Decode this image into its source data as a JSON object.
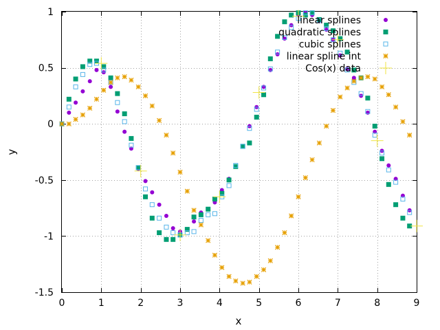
{
  "chart_data": {
    "type": "scatter",
    "title": "",
    "xlabel": "x",
    "ylabel": "y",
    "xlim": [
      0,
      9
    ],
    "ylim": [
      -1.5,
      1
    ],
    "xticks": [
      0,
      1,
      2,
      3,
      4,
      5,
      6,
      7,
      8,
      9
    ],
    "xtick_labels": [
      "0",
      "1",
      "2",
      "3",
      "4",
      "5",
      "6",
      "7",
      "8",
      "9"
    ],
    "yticks": [
      -1.5,
      -1,
      -0.5,
      0,
      0.5,
      1
    ],
    "ytick_labels": [
      "-1.5",
      "-1",
      "-0.5",
      "0",
      "0.5",
      "1"
    ],
    "grid": true,
    "legend_position": "top-right",
    "series": [
      {
        "name": "linear splines",
        "marker": "filled-circle",
        "color": "#9400d3",
        "x": [
          0.0,
          0.18,
          0.35,
          0.53,
          0.71,
          0.88,
          1.06,
          1.24,
          1.41,
          1.59,
          1.76,
          1.94,
          2.12,
          2.29,
          2.47,
          2.65,
          2.82,
          3.0,
          3.18,
          3.35,
          3.53,
          3.71,
          3.88,
          4.06,
          4.24,
          4.41,
          4.59,
          4.76,
          4.94,
          5.12,
          5.29,
          5.47,
          5.65,
          5.82,
          6.0,
          6.18,
          6.35,
          6.53,
          6.71,
          6.88,
          7.06,
          7.24,
          7.41,
          7.59,
          7.76,
          7.94,
          8.12,
          8.29,
          8.47,
          8.65,
          8.82
        ],
        "y": [
          0.0,
          0.1,
          0.19,
          0.29,
          0.38,
          0.48,
          0.46,
          0.33,
          0.11,
          -0.07,
          -0.22,
          -0.4,
          -0.51,
          -0.61,
          -0.72,
          -0.82,
          -0.93,
          -0.96,
          -0.94,
          -0.87,
          -0.79,
          -0.76,
          -0.7,
          -0.59,
          -0.49,
          -0.38,
          -0.2,
          -0.02,
          0.15,
          0.33,
          0.48,
          0.62,
          0.76,
          0.88,
          0.97,
          0.99,
          0.97,
          0.92,
          0.84,
          0.75,
          0.61,
          0.49,
          0.41,
          0.25,
          0.1,
          -0.07,
          -0.24,
          -0.37,
          -0.49,
          -0.64,
          -0.77
        ]
      },
      {
        "name": "quadratic splines",
        "marker": "filled-square",
        "color": "#009e73",
        "x": [
          0.0,
          0.18,
          0.35,
          0.53,
          0.71,
          0.88,
          1.06,
          1.24,
          1.41,
          1.59,
          1.76,
          1.94,
          2.12,
          2.29,
          2.47,
          2.65,
          2.82,
          3.0,
          3.18,
          3.35,
          3.53,
          3.71,
          3.88,
          4.06,
          4.24,
          4.41,
          4.59,
          4.76,
          4.94,
          5.12,
          5.29,
          5.47,
          5.65,
          5.82,
          6.0,
          6.18,
          6.35,
          6.53,
          6.71,
          6.88,
          7.06,
          7.24,
          7.41,
          7.59,
          7.76,
          7.94,
          8.12,
          8.29,
          8.47,
          8.65,
          8.82
        ],
        "y": [
          0.0,
          0.22,
          0.4,
          0.51,
          0.56,
          0.56,
          0.51,
          0.41,
          0.27,
          0.09,
          -0.13,
          -0.39,
          -0.65,
          -0.84,
          -0.97,
          -1.03,
          -1.03,
          -0.99,
          -0.94,
          -0.83,
          -0.81,
          -0.76,
          -0.67,
          -0.62,
          -0.5,
          -0.38,
          -0.2,
          -0.17,
          0.06,
          0.26,
          0.58,
          0.78,
          0.91,
          0.97,
          0.99,
          0.97,
          0.99,
          0.93,
          0.88,
          0.83,
          0.76,
          0.64,
          0.48,
          0.41,
          0.23,
          -0.02,
          -0.31,
          -0.54,
          -0.72,
          -0.84,
          -0.91
        ]
      },
      {
        "name": "cubic splines",
        "marker": "open-square",
        "color": "#56b4e9",
        "x": [
          0.0,
          0.18,
          0.35,
          0.53,
          0.71,
          0.88,
          1.06,
          1.24,
          1.41,
          1.59,
          1.76,
          1.94,
          2.12,
          2.29,
          2.47,
          2.65,
          2.82,
          3.0,
          3.18,
          3.35,
          3.53,
          3.71,
          3.88,
          4.06,
          4.24,
          4.41,
          4.59,
          4.76,
          4.94,
          5.12,
          5.29,
          5.47,
          5.65,
          5.82,
          6.0,
          6.18,
          6.35,
          6.53,
          6.71,
          6.88,
          7.06,
          7.24,
          7.41,
          7.59,
          7.76,
          7.94,
          8.12,
          8.29,
          8.47,
          8.65,
          8.82
        ],
        "y": [
          0.0,
          0.15,
          0.33,
          0.44,
          0.53,
          0.54,
          0.48,
          0.37,
          0.19,
          0.02,
          -0.19,
          -0.39,
          -0.58,
          -0.72,
          -0.84,
          -0.92,
          -0.97,
          -0.99,
          -0.97,
          -0.96,
          -0.86,
          -0.81,
          -0.8,
          -0.65,
          -0.55,
          -0.37,
          -0.2,
          -0.04,
          0.13,
          0.32,
          0.49,
          0.64,
          0.77,
          0.86,
          0.94,
          0.99,
          0.99,
          0.92,
          0.85,
          0.75,
          0.63,
          0.48,
          0.37,
          0.27,
          0.11,
          -0.1,
          -0.26,
          -0.41,
          -0.52,
          -0.67,
          -0.79
        ]
      },
      {
        "name": "linear spline int",
        "marker": "star",
        "color": "#e69f00",
        "x": [
          0.0,
          0.18,
          0.35,
          0.53,
          0.71,
          0.88,
          1.06,
          1.24,
          1.41,
          1.59,
          1.76,
          1.94,
          2.12,
          2.29,
          2.47,
          2.65,
          2.82,
          3.0,
          3.18,
          3.35,
          3.53,
          3.71,
          3.88,
          4.06,
          4.24,
          4.41,
          4.59,
          4.76,
          4.94,
          5.12,
          5.29,
          5.47,
          5.65,
          5.82,
          6.0,
          6.18,
          6.35,
          6.53,
          6.71,
          6.88,
          7.06,
          7.24,
          7.41,
          7.59,
          7.76,
          7.94,
          8.12,
          8.29,
          8.47,
          8.65,
          8.82
        ],
        "y": [
          0.0,
          0.0,
          0.04,
          0.08,
          0.14,
          0.22,
          0.3,
          0.37,
          0.41,
          0.42,
          0.39,
          0.33,
          0.25,
          0.16,
          0.03,
          -0.1,
          -0.26,
          -0.43,
          -0.6,
          -0.77,
          -0.9,
          -1.04,
          -1.17,
          -1.28,
          -1.36,
          -1.4,
          -1.42,
          -1.41,
          -1.36,
          -1.3,
          -1.22,
          -1.1,
          -0.97,
          -0.82,
          -0.65,
          -0.48,
          -0.32,
          -0.17,
          -0.02,
          0.12,
          0.24,
          0.32,
          0.38,
          0.41,
          0.42,
          0.4,
          0.33,
          0.26,
          0.15,
          0.02,
          -0.1
        ]
      },
      {
        "name": "Cos(x) data",
        "marker": "plus",
        "color": "#f0e442",
        "x": [
          1.0,
          2.0,
          3.0,
          4.0,
          5.0,
          6.0,
          7.0,
          8.0,
          9.0
        ],
        "y": [
          0.54,
          -0.42,
          -0.99,
          -0.65,
          0.28,
          0.96,
          0.75,
          -0.15,
          -0.91
        ]
      }
    ]
  }
}
